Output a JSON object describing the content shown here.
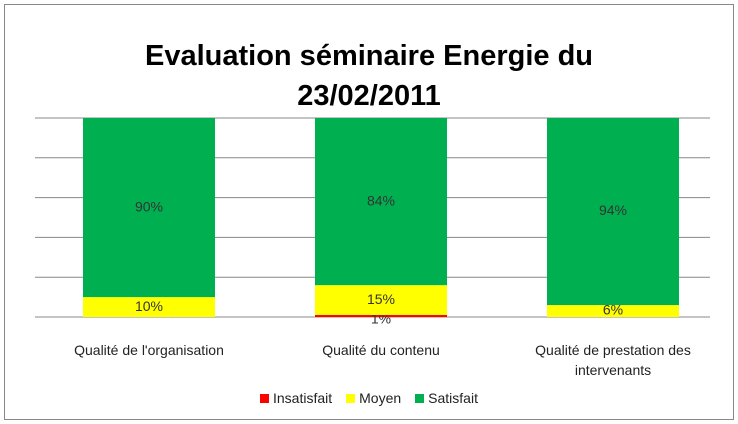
{
  "chart_data": {
    "type": "stacked_bar",
    "title": "Evaluation séminaire Energie du 23/02/2011",
    "categories": [
      "Qualité de l'organisation",
      "Qualité du contenu",
      "Qualité de prestation des intervenants"
    ],
    "series": [
      {
        "name": "Insatisfait",
        "color": "#ff0000",
        "values": [
          0,
          1,
          0
        ],
        "value_labels": [
          null,
          "1%",
          null
        ]
      },
      {
        "name": "Moyen",
        "color": "#ffff00",
        "values": [
          10,
          15,
          6
        ],
        "value_labels": [
          "10%",
          "15%",
          "6%"
        ]
      },
      {
        "name": "Satisfait",
        "color": "#00b050",
        "values": [
          90,
          84,
          94
        ],
        "value_labels": [
          "90%",
          "84%",
          "94%"
        ]
      }
    ],
    "ylim": [
      0,
      100
    ],
    "yticks": [
      0,
      20,
      40,
      60,
      80,
      100
    ],
    "grid": true,
    "legend": "bottom"
  }
}
